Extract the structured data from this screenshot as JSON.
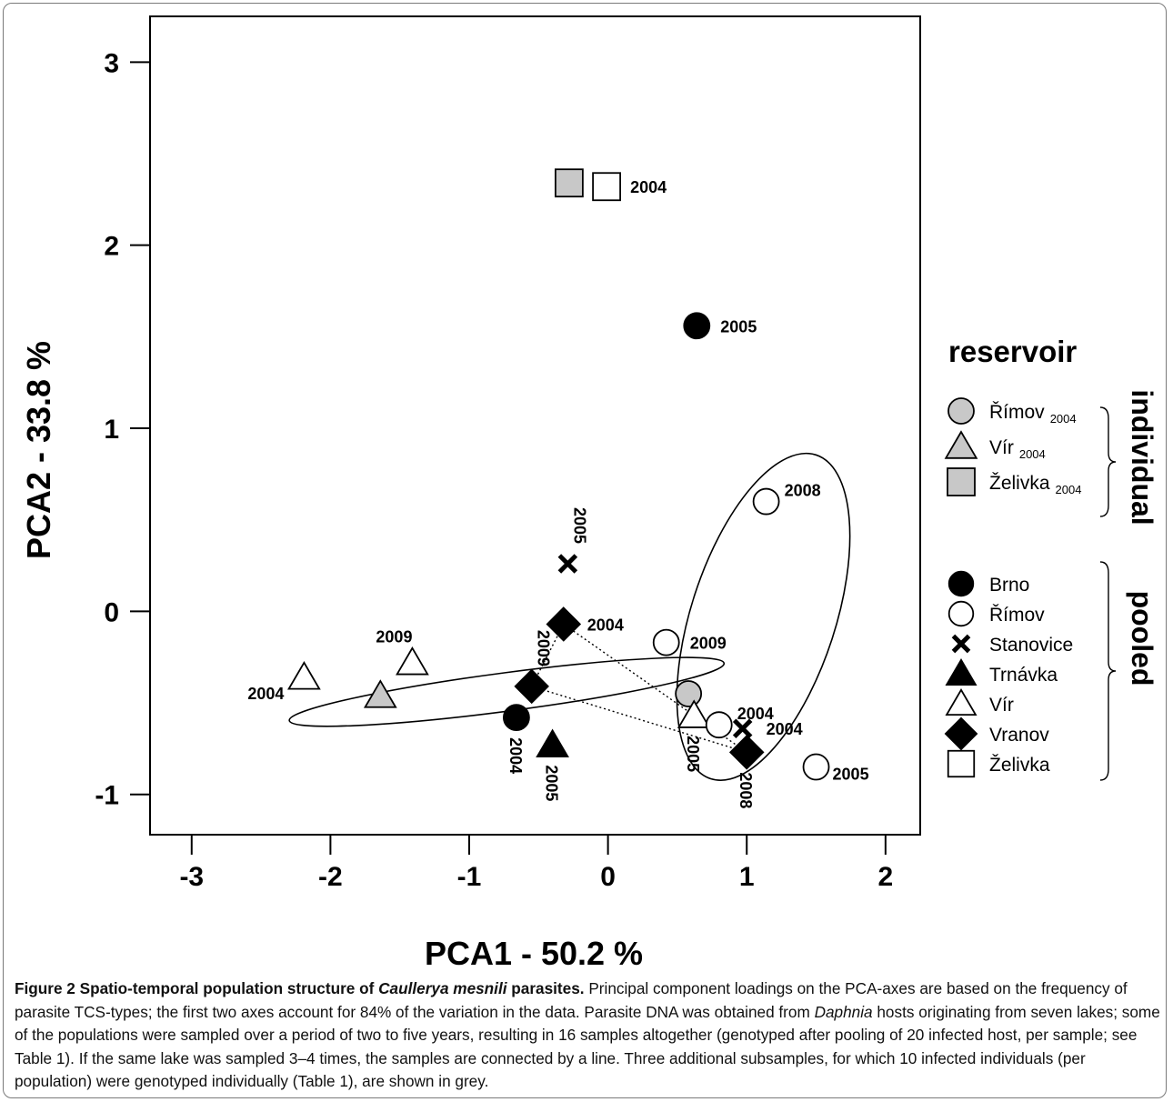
{
  "chart_data": {
    "type": "scatter",
    "xlabel": "PCA1  -  50.2 %",
    "ylabel": "PCA2  -  33.8 %",
    "xlim": [
      -3.3,
      2.25
    ],
    "ylim": [
      -1.22,
      3.25
    ],
    "xticks": [
      -3,
      -2,
      -1,
      0,
      1,
      2
    ],
    "yticks": [
      -1,
      0,
      1,
      2,
      3
    ],
    "grid": false,
    "legend_position": "right",
    "legend_title": "reservoir",
    "legend_groups": [
      {
        "label": "individual",
        "items": [
          {
            "name": "Římov",
            "sub": "2004",
            "marker": "circle",
            "fill": "#c8c8c8"
          },
          {
            "name": "Vír",
            "sub": "2004",
            "marker": "triangle",
            "fill": "#c8c8c8"
          },
          {
            "name": "Želivka",
            "sub": "2004",
            "marker": "square",
            "fill": "#c8c8c8"
          }
        ]
      },
      {
        "label": "pooled",
        "items": [
          {
            "name": "Brno",
            "marker": "circle",
            "fill": "#000000"
          },
          {
            "name": "Římov",
            "marker": "circle",
            "fill": "#ffffff"
          },
          {
            "name": "Stanovice",
            "marker": "cross",
            "fill": "#000000"
          },
          {
            "name": "Trnávka",
            "marker": "triangle",
            "fill": "#000000"
          },
          {
            "name": "Vír",
            "marker": "triangle",
            "fill": "#ffffff"
          },
          {
            "name": "Vranov",
            "marker": "diamond",
            "fill": "#000000"
          },
          {
            "name": "Želivka",
            "marker": "square",
            "fill": "#ffffff"
          }
        ]
      }
    ],
    "points": [
      {
        "series": "Želivka individual",
        "marker": "square",
        "fill": "#c8c8c8",
        "x": -0.28,
        "y": 2.34,
        "label": ""
      },
      {
        "series": "Želivka",
        "marker": "square",
        "fill": "#ffffff",
        "x": -0.01,
        "y": 2.32,
        "label": "2004",
        "lpos": "right"
      },
      {
        "series": "Brno",
        "marker": "circle",
        "fill": "#000000",
        "x": 0.64,
        "y": 1.56,
        "label": "2005",
        "lpos": "right"
      },
      {
        "series": "Stanovice",
        "marker": "cross",
        "fill": "#000000",
        "x": -0.29,
        "y": 0.26,
        "label": "2005",
        "lpos": "above-vertical"
      },
      {
        "series": "Římov",
        "marker": "circle",
        "fill": "#ffffff",
        "x": 1.14,
        "y": 0.6,
        "label": "2008",
        "lpos": "right-up"
      },
      {
        "series": "Vranov",
        "marker": "diamond",
        "fill": "#000000",
        "x": -0.32,
        "y": -0.07,
        "label": "2004",
        "lpos": "right"
      },
      {
        "series": "Římov",
        "marker": "circle",
        "fill": "#ffffff",
        "x": 0.42,
        "y": -0.17,
        "label": "2009",
        "lpos": "right"
      },
      {
        "series": "Vír",
        "marker": "triangle",
        "fill": "#ffffff",
        "x": -1.41,
        "y": -0.28,
        "label": "2009",
        "lpos": "above"
      },
      {
        "series": "Vír",
        "marker": "triangle",
        "fill": "#ffffff",
        "x": -2.19,
        "y": -0.36,
        "label": "2004",
        "lpos": "left"
      },
      {
        "series": "Vranov",
        "marker": "diamond",
        "fill": "#000000",
        "x": -0.55,
        "y": -0.41,
        "label": "2009",
        "lpos": "above-vertical"
      },
      {
        "series": "Vír individual",
        "marker": "triangle",
        "fill": "#c8c8c8",
        "x": -1.64,
        "y": -0.46,
        "label": ""
      },
      {
        "series": "Římov individual",
        "marker": "circle",
        "fill": "#c8c8c8",
        "x": 0.58,
        "y": -0.45,
        "label": ""
      },
      {
        "series": "Vír",
        "marker": "triangle",
        "fill": "#ffffff",
        "x": 0.62,
        "y": -0.57,
        "label": "2005",
        "lpos": "below-vertical"
      },
      {
        "series": "Brno",
        "marker": "circle",
        "fill": "#000000",
        "x": -0.66,
        "y": -0.58,
        "label": "2004",
        "lpos": "below-vertical"
      },
      {
        "series": "Římov",
        "marker": "circle",
        "fill": "#ffffff",
        "x": 0.8,
        "y": -0.62,
        "label": "2004",
        "lpos": "right-up"
      },
      {
        "series": "Stanovice",
        "marker": "cross",
        "fill": "#000000",
        "x": 0.97,
        "y": -0.64,
        "label": "2004",
        "lpos": "right"
      },
      {
        "series": "Trnávka",
        "marker": "triangle",
        "fill": "#000000",
        "x": -0.4,
        "y": -0.73,
        "label": "2005",
        "lpos": "below-vertical"
      },
      {
        "series": "Vranov",
        "marker": "diamond",
        "fill": "#000000",
        "x": 1.0,
        "y": -0.77,
        "label": "2008",
        "lpos": "below-vertical"
      },
      {
        "series": "Římov",
        "marker": "circle",
        "fill": "#ffffff",
        "x": 1.5,
        "y": -0.85,
        "label": "2005",
        "lpos": "right-down"
      }
    ],
    "connectors": [
      {
        "series": "Vranov",
        "style": "dotted",
        "points": [
          [
            -0.32,
            -0.07
          ],
          [
            -0.55,
            -0.41
          ],
          [
            1.0,
            -0.77
          ],
          [
            -0.32,
            -0.07
          ]
        ]
      }
    ],
    "ellipses": [
      {
        "series": "Vír",
        "cx": -0.73,
        "cy": -0.44,
        "rx": 1.58,
        "ry": 0.105,
        "angle_deg": -7.5
      },
      {
        "series": "Římov",
        "cx": 1.12,
        "cy": -0.03,
        "rx": 0.52,
        "ry": 0.93,
        "angle_deg": 18
      }
    ]
  },
  "caption": {
    "figure_label": "Figure 2",
    "title_before": " Spatio-temporal population structure of ",
    "title_italic": "Caullerya mesnili",
    "title_after": " parasites.",
    "text_1": " Principal component loadings on the PCA-axes are based on the frequency of parasite TCS-types; the first two axes account for 84% of the variation in the data. Parasite DNA was obtained from ",
    "text_italic": "Daphnia",
    "text_2": " hosts originating from seven lakes; some of the populations were sampled over a period of two to five years, resulting in 16 samples altogether (genotyped after pooling of 20 infected host, per sample; see Table 1). If the same lake was sampled 3–4 times, the samples are connected by a line. Three additional subsamples, for which 10 infected individuals (per population) were genotyped individually (Table 1), are shown in grey."
  }
}
